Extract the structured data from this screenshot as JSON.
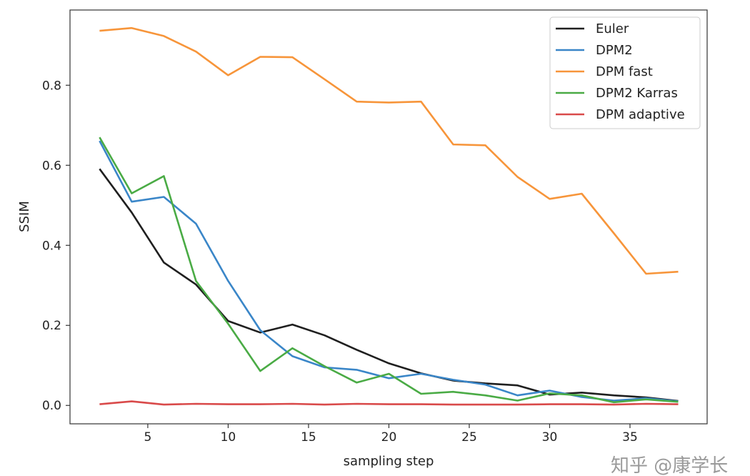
{
  "chart_data": {
    "type": "line",
    "title": "",
    "xlabel": "sampling step",
    "ylabel": "SSIM",
    "xlim": [
      0.16,
      39.8
    ],
    "ylim": [
      -0.046,
      0.988
    ],
    "xticks": [
      5,
      10,
      15,
      20,
      25,
      30,
      35
    ],
    "xtick_labels": [
      "5",
      "10",
      "15",
      "20",
      "25",
      "30",
      "35"
    ],
    "yticks": [
      0.0,
      0.2,
      0.4,
      0.6,
      0.8
    ],
    "ytick_labels": [
      "0.0",
      "0.2",
      "0.4",
      "0.6",
      "0.8"
    ],
    "grid": false,
    "legend_position": "top-right",
    "x": [
      2,
      4,
      6,
      8,
      10,
      12,
      14,
      16,
      18,
      20,
      22,
      24,
      26,
      28,
      30,
      32,
      34,
      36,
      38
    ],
    "series": [
      {
        "name": "Euler",
        "color": "#1f1f1f",
        "values": [
          0.591,
          0.482,
          0.357,
          0.302,
          0.211,
          0.182,
          0.202,
          0.175,
          0.139,
          0.105,
          0.08,
          0.062,
          0.055,
          0.05,
          0.027,
          0.032,
          0.025,
          0.02,
          0.011
        ]
      },
      {
        "name": "DPM2",
        "color": "#3a86c8",
        "values": [
          0.661,
          0.509,
          0.521,
          0.454,
          0.311,
          0.188,
          0.123,
          0.095,
          0.089,
          0.068,
          0.079,
          0.064,
          0.052,
          0.025,
          0.037,
          0.021,
          0.012,
          0.018,
          0.01
        ]
      },
      {
        "name": "DPM fast",
        "color": "#f7953a",
        "values": [
          0.936,
          0.943,
          0.923,
          0.884,
          0.825,
          0.871,
          0.87,
          0.815,
          0.759,
          0.757,
          0.759,
          0.652,
          0.65,
          0.571,
          0.516,
          0.529,
          0.43,
          0.329,
          0.334
        ]
      },
      {
        "name": "DPM2 Karras",
        "color": "#4aab45",
        "values": [
          0.67,
          0.53,
          0.573,
          0.311,
          0.204,
          0.086,
          0.143,
          0.098,
          0.057,
          0.079,
          0.029,
          0.034,
          0.025,
          0.012,
          0.03,
          0.025,
          0.008,
          0.015,
          0.009
        ]
      },
      {
        "name": "DPM adaptive",
        "color": "#d94a4a",
        "values": [
          0.003,
          0.01,
          0.002,
          0.004,
          0.003,
          0.003,
          0.004,
          0.002,
          0.004,
          0.003,
          0.003,
          0.002,
          0.002,
          0.002,
          0.003,
          0.003,
          0.002,
          0.004,
          0.003
        ]
      }
    ]
  },
  "watermark": "知乎 @康学长"
}
